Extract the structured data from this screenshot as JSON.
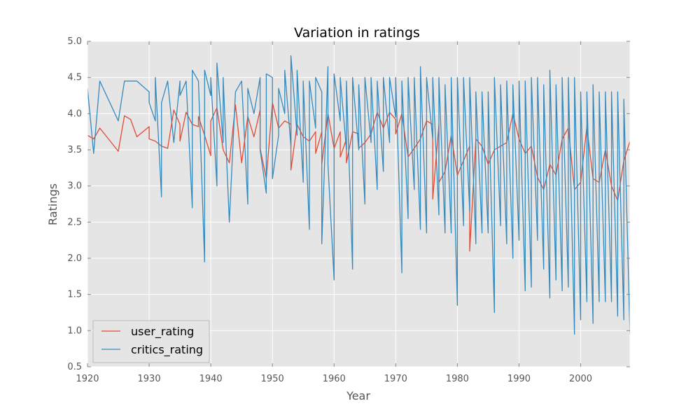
{
  "chart_data": {
    "type": "line",
    "title": "Variation in ratings",
    "xlabel": "Year",
    "ylabel": "Ratings",
    "xlim": [
      1920,
      2008
    ],
    "ylim": [
      0.5,
      5.0
    ],
    "xticks": [
      1920,
      1930,
      1940,
      1950,
      1960,
      1970,
      1980,
      1990,
      2000
    ],
    "yticks": [
      0.5,
      1.0,
      1.5,
      2.0,
      2.5,
      3.0,
      3.5,
      4.0,
      4.5,
      5.0
    ],
    "grid": true,
    "legend_position": "lower-left",
    "background": "#e5e5e5",
    "series": [
      {
        "name": "user_rating",
        "color": "#e24a33",
        "x": [
          1920,
          1921,
          1922,
          1925,
          1926,
          1927,
          1928,
          1930,
          1930,
          1931,
          1932,
          1933,
          1934,
          1935,
          1935,
          1936,
          1937,
          1938,
          1938,
          1939,
          1940,
          1940,
          1941,
          1942,
          1943,
          1944,
          1945,
          1946,
          1947,
          1948,
          1948,
          1949,
          1950,
          1951,
          1952,
          1953,
          1953,
          1954,
          1955,
          1956,
          1957,
          1957,
          1958,
          1958,
          1959,
          1960,
          1961,
          1961,
          1962,
          1962,
          1963,
          1964,
          1964,
          1965,
          1966,
          1967,
          1968,
          1969,
          1970,
          1970,
          1971,
          1972,
          1973,
          1974,
          1975,
          1976,
          1976,
          1977,
          1977,
          1978,
          1979,
          1980,
          1981,
          1982,
          1982,
          1983,
          1984,
          1985,
          1986,
          1987,
          1988,
          1989,
          1990,
          1991,
          1992,
          1993,
          1994,
          1995,
          1996,
          1997,
          1998,
          1999,
          2000,
          2001,
          2002,
          2003,
          2004,
          2005,
          2006,
          2007,
          2008
        ],
        "y": [
          3.7,
          3.65,
          3.8,
          3.48,
          3.97,
          3.92,
          3.68,
          3.82,
          3.65,
          3.62,
          3.55,
          3.52,
          4.05,
          3.85,
          3.62,
          4.02,
          3.85,
          3.82,
          3.96,
          3.7,
          3.42,
          3.9,
          4.08,
          3.5,
          3.32,
          4.12,
          3.32,
          3.96,
          3.68,
          4.05,
          3.52,
          3.1,
          4.15,
          3.8,
          3.9,
          3.85,
          3.22,
          3.85,
          3.68,
          3.62,
          3.75,
          3.45,
          3.75,
          3.3,
          4.0,
          3.52,
          3.75,
          3.4,
          3.65,
          3.32,
          3.75,
          3.72,
          3.52,
          3.6,
          3.72,
          4.02,
          3.8,
          4.02,
          3.92,
          3.72,
          4.0,
          3.4,
          3.52,
          3.65,
          3.9,
          3.85,
          2.82,
          3.85,
          3.05,
          3.2,
          3.7,
          3.15,
          3.35,
          3.55,
          2.1,
          3.65,
          3.55,
          3.3,
          3.5,
          3.55,
          3.6,
          4.0,
          3.65,
          3.45,
          3.55,
          3.12,
          2.95,
          3.3,
          3.15,
          3.65,
          3.8,
          2.95,
          3.05,
          3.82,
          3.1,
          3.05,
          3.5,
          3.0,
          2.8,
          3.35,
          3.62
        ]
      },
      {
        "name": "critics_rating",
        "color": "#348abd",
        "x": [
          1920,
          1921,
          1922,
          1925,
          1926,
          1928,
          1930,
          1930,
          1931,
          1931,
          1932,
          1932,
          1933,
          1934,
          1935,
          1935,
          1936,
          1937,
          1937,
          1938,
          1939,
          1939,
          1940,
          1940,
          1941,
          1941,
          1942,
          1942,
          1943,
          1944,
          1945,
          1946,
          1946,
          1947,
          1948,
          1948,
          1949,
          1949,
          1950,
          1950,
          1951,
          1951,
          1952,
          1952,
          1953,
          1953,
          1954,
          1954,
          1955,
          1955,
          1956,
          1956,
          1957,
          1957,
          1958,
          1958,
          1959,
          1959,
          1960,
          1960,
          1961,
          1961,
          1962,
          1962,
          1963,
          1963,
          1964,
          1964,
          1965,
          1965,
          1966,
          1966,
          1967,
          1967,
          1968,
          1968,
          1969,
          1969,
          1970,
          1970,
          1971,
          1971,
          1972,
          1972,
          1973,
          1973,
          1974,
          1974,
          1975,
          1975,
          1976,
          1976,
          1977,
          1977,
          1978,
          1978,
          1979,
          1979,
          1980,
          1980,
          1981,
          1981,
          1982,
          1982,
          1983,
          1983,
          1984,
          1984,
          1985,
          1985,
          1986,
          1986,
          1987,
          1987,
          1988,
          1988,
          1989,
          1989,
          1990,
          1990,
          1991,
          1991,
          1992,
          1992,
          1993,
          1993,
          1994,
          1994,
          1995,
          1995,
          1996,
          1996,
          1997,
          1997,
          1998,
          1998,
          1999,
          1999,
          2000,
          2000,
          2001,
          2001,
          2002,
          2002,
          2003,
          2003,
          2004,
          2004,
          2005,
          2005,
          2006,
          2006,
          2007,
          2007,
          2008
        ],
        "y": [
          4.35,
          3.45,
          4.45,
          3.9,
          4.45,
          4.45,
          4.3,
          4.15,
          3.9,
          4.5,
          2.85,
          4.15,
          4.45,
          3.6,
          4.45,
          4.25,
          4.45,
          2.7,
          4.6,
          4.45,
          1.95,
          4.6,
          4.25,
          4.5,
          3.0,
          4.7,
          3.6,
          4.5,
          2.5,
          4.3,
          4.45,
          2.75,
          4.35,
          4.0,
          4.5,
          3.5,
          2.9,
          4.55,
          4.5,
          3.1,
          3.7,
          4.35,
          4.0,
          4.6,
          3.55,
          4.8,
          3.7,
          4.6,
          3.05,
          4.45,
          2.4,
          4.45,
          3.8,
          4.5,
          4.3,
          2.2,
          4.65,
          3.3,
          1.7,
          4.55,
          3.9,
          4.5,
          3.5,
          4.45,
          1.85,
          4.5,
          3.5,
          4.4,
          2.75,
          4.5,
          3.6,
          4.5,
          2.95,
          4.45,
          3.2,
          4.5,
          3.6,
          4.5,
          3.95,
          4.5,
          1.8,
          4.45,
          2.55,
          4.5,
          2.95,
          4.5,
          2.4,
          4.65,
          2.35,
          4.5,
          3.65,
          4.5,
          2.6,
          4.5,
          2.35,
          4.4,
          2.35,
          4.5,
          1.35,
          4.5,
          2.45,
          4.5,
          2.65,
          4.5,
          2.2,
          4.3,
          2.35,
          4.3,
          2.35,
          4.3,
          1.25,
          4.5,
          2.45,
          4.4,
          2.2,
          4.45,
          2.0,
          4.4,
          2.25,
          4.45,
          1.55,
          4.45,
          1.6,
          4.5,
          2.25,
          4.5,
          1.85,
          4.4,
          1.45,
          4.6,
          1.7,
          4.4,
          1.55,
          4.5,
          1.6,
          4.5,
          0.95,
          4.5,
          1.15,
          4.3,
          1.4,
          4.3,
          1.1,
          4.4,
          1.4,
          4.3,
          1.4,
          4.3,
          1.4,
          4.3,
          1.2,
          4.3,
          1.15,
          4.2,
          0.95
        ]
      }
    ]
  }
}
